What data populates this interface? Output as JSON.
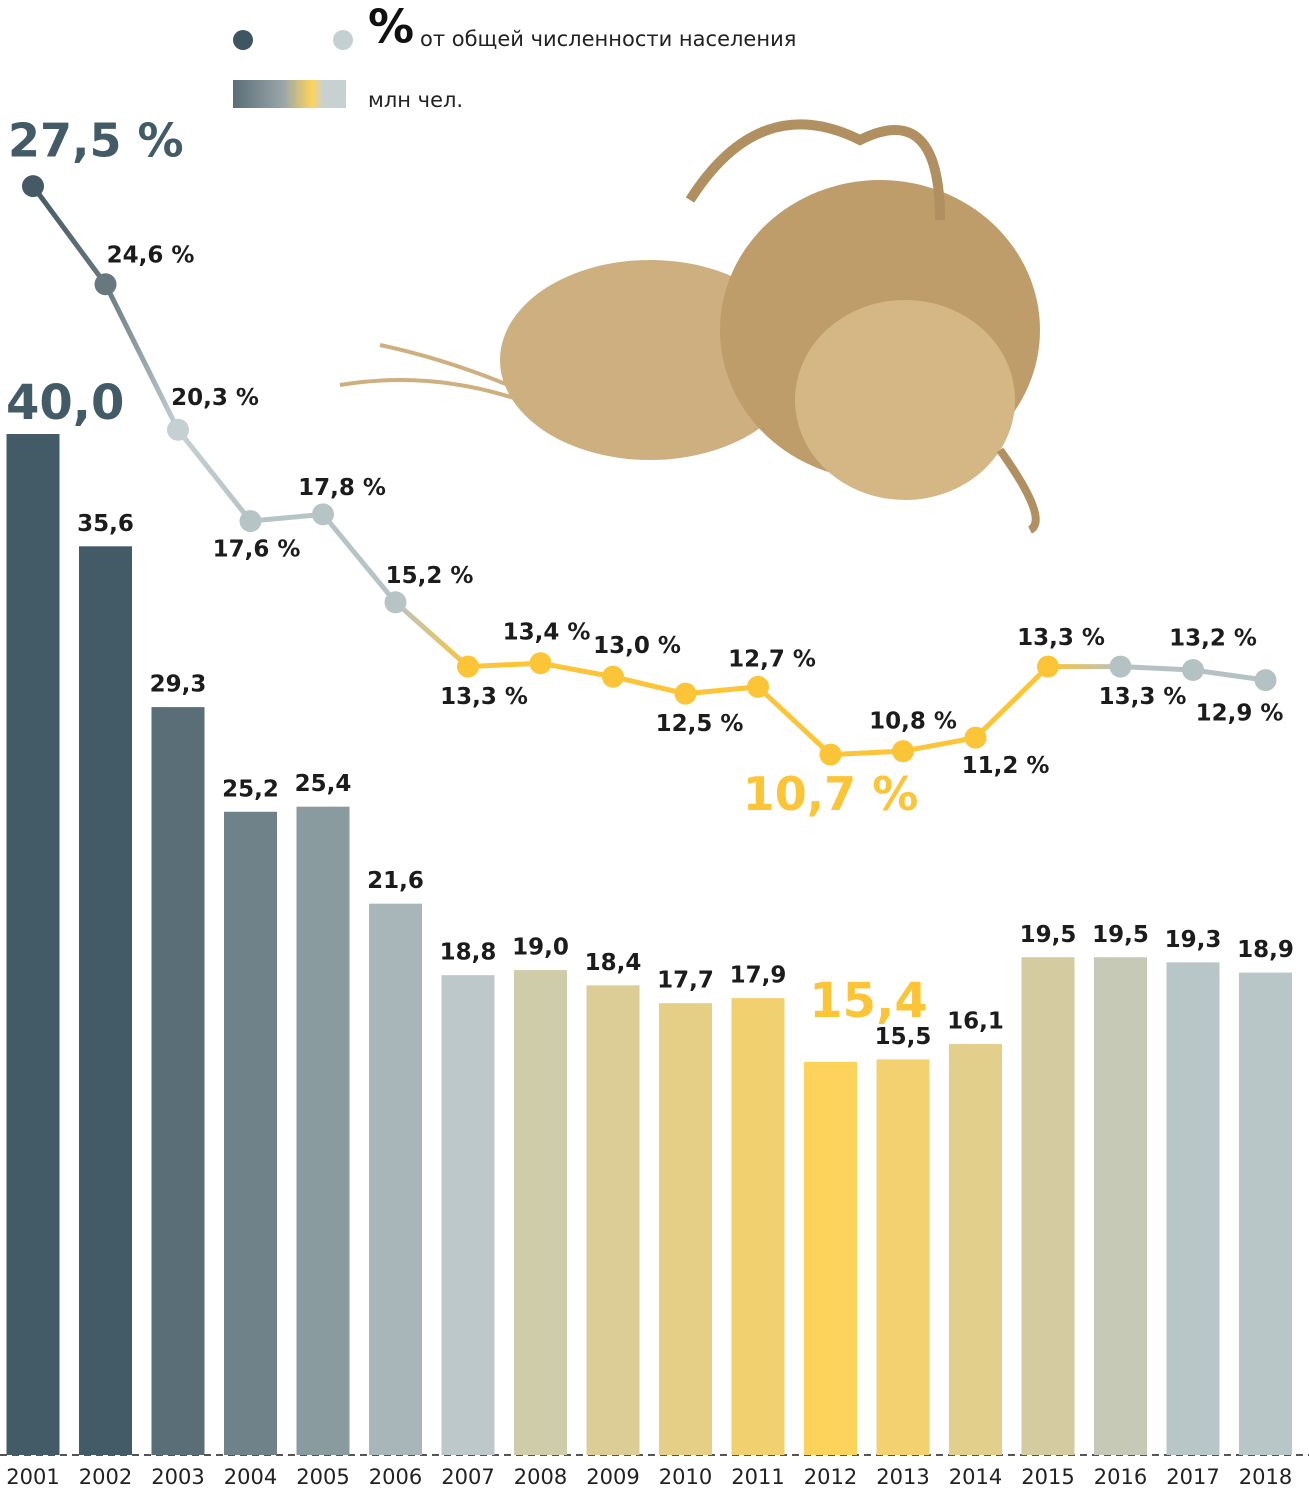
{
  "chart_data": {
    "type": "bar-line",
    "categories": [
      "2001",
      "2002",
      "2003",
      "2004",
      "2005",
      "2006",
      "2007",
      "2008",
      "2009",
      "2010",
      "2011",
      "2012",
      "2013",
      "2014",
      "2015",
      "2016",
      "2017",
      "2018"
    ],
    "ylim": [
      0,
      40
    ],
    "y2lim": [
      -10,
      33
    ],
    "highlight": [
      0,
      11
    ],
    "legend_unit": "%",
    "series": [
      {
        "name": "млн чел.",
        "type": "bar",
        "values": [
          40.0,
          35.6,
          29.3,
          25.2,
          25.4,
          21.6,
          18.8,
          19.0,
          18.4,
          17.7,
          17.9,
          15.4,
          15.5,
          16.1,
          19.5,
          19.5,
          19.3,
          18.9
        ],
        "value_labels": [
          "40,0",
          "35,6",
          "29,3",
          "25,2",
          "25,4",
          "21,6",
          "18,8",
          "19,0",
          "18,4",
          "17,7",
          "17,9",
          "15,4",
          "15,5",
          "16,1",
          "19,5",
          "19,5",
          "19,3",
          "18,9"
        ],
        "colors": [
          "#435b66",
          "#435b66",
          "#5a6e77",
          "#6f8289",
          "#8a9ba0",
          "#a9b6b9",
          "#bcc8ca",
          "#cfcda9",
          "#dbcd95",
          "#e5ce86",
          "#f0d06f",
          "#fdd35c",
          "#f3d170",
          "#e2cf8c",
          "#d4cca0",
          "#c6c9b5",
          "#b9c6c8",
          "#b9c6c8"
        ]
      },
      {
        "name": "от общей численности населения",
        "type": "line",
        "axis": "y2",
        "values": [
          27.5,
          24.6,
          20.3,
          17.6,
          17.8,
          15.2,
          13.3,
          13.4,
          13.0,
          12.5,
          12.7,
          10.7,
          10.8,
          11.2,
          13.3,
          13.3,
          13.2,
          12.9
        ],
        "value_labels": [
          "27,5 %",
          "24,6 %",
          "20,3 %",
          "17,6 %",
          "17,8 %",
          "15,2 %",
          "13,3 %",
          "13,4 %",
          "13,0 %",
          "12,5 %",
          "12,7 %",
          "10,7 %",
          "10,8 %",
          "11,2 %",
          "13,3 %",
          "13,3 %",
          "13,2 %",
          "12,9 %"
        ],
        "colors": [
          "#455a64",
          "#68787f",
          "#c4d0d2",
          "#b7c4c6",
          "#b7c4c6",
          "#b7c4c6",
          "#fcc437",
          "#fcc437",
          "#fcc437",
          "#fcc437",
          "#fcc437",
          "#fcc437",
          "#fcc437",
          "#fcc437",
          "#fcc437",
          "#b5c2c4",
          "#b5c2c4",
          "#b5c2c4"
        ]
      }
    ]
  }
}
